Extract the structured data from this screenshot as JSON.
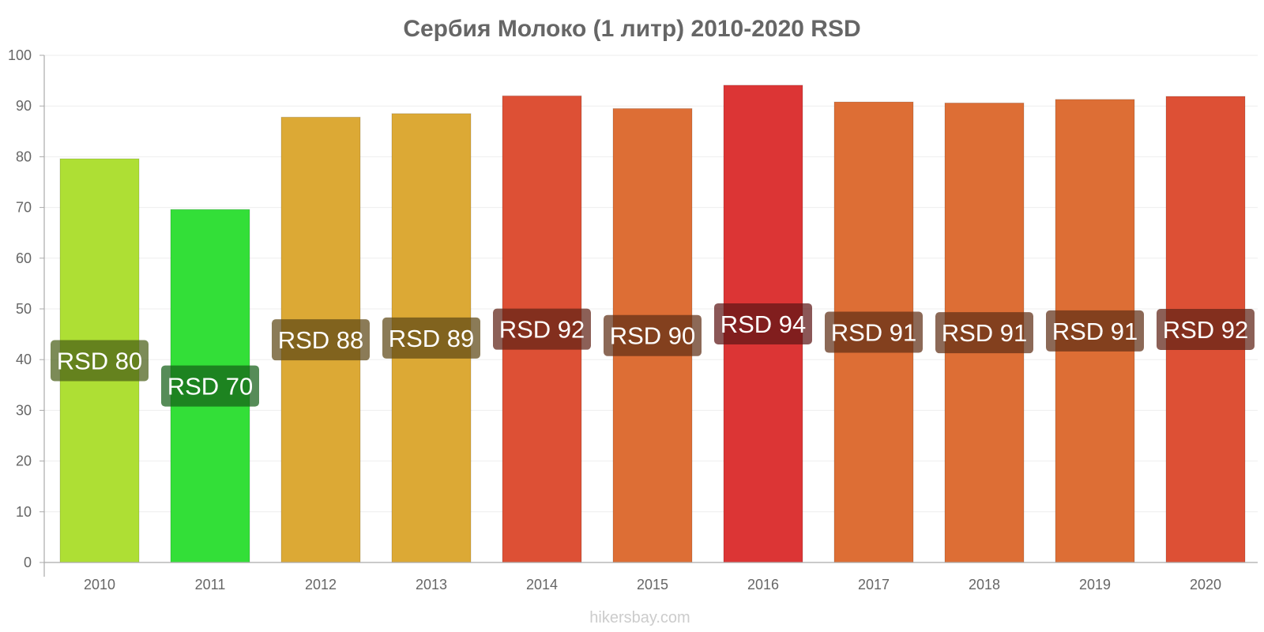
{
  "chart_data": {
    "type": "bar",
    "title": "Сербия Молоко (1 литр) 2010-2020 RSD",
    "categories": [
      "2010",
      "2011",
      "2012",
      "2013",
      "2014",
      "2015",
      "2016",
      "2017",
      "2018",
      "2019",
      "2020"
    ],
    "values": [
      79.6,
      69.6,
      87.8,
      88.5,
      92.0,
      89.5,
      94.1,
      90.8,
      90.6,
      91.3,
      91.9
    ],
    "data_labels": [
      "RSD 80",
      "RSD 70",
      "RSD 88",
      "RSD 89",
      "RSD 92",
      "RSD 90",
      "RSD 94",
      "RSD 91",
      "RSD 91",
      "RSD 91",
      "RSD 92"
    ],
    "colors": [
      "#aedf34",
      "#33df38",
      "#dca935",
      "#dca935",
      "#dd5035",
      "#dd6e35",
      "#dc3535",
      "#dd6e35",
      "#dd6e35",
      "#dd6e35",
      "#dd5035"
    ],
    "label_bg_colors": [
      "#4a5e16",
      "#156018",
      "#5e4816",
      "#5e4816",
      "#5f2216",
      "#5f2f16",
      "#5e1616",
      "#5f2f16",
      "#5f2f16",
      "#5f2f16",
      "#5f2216"
    ],
    "ylim": [
      0,
      100
    ],
    "yticks": [
      "0",
      "10",
      "20",
      "30",
      "40",
      "50",
      "60",
      "70",
      "80",
      "90",
      "100"
    ],
    "grid": true,
    "xlabel": "",
    "ylabel": ""
  },
  "watermark": "hikersbay.com"
}
